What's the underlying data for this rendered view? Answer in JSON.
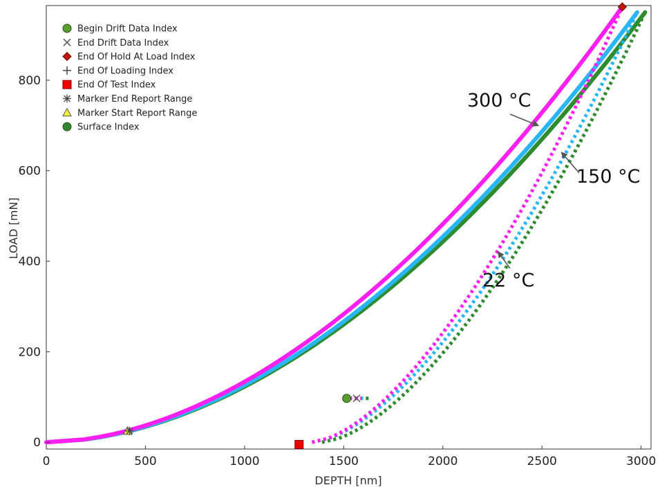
{
  "chart_data": {
    "type": "line",
    "xlabel": "DEPTH [nm]",
    "ylabel": "LOAD [mN]",
    "xlim": [
      0,
      3050
    ],
    "ylim": [
      -15,
      965
    ],
    "x_ticks": [
      "0",
      "500",
      "1000",
      "1500",
      "2000",
      "2500",
      "3000"
    ],
    "y_ticks": [
      "0",
      "200",
      "400",
      "600",
      "800"
    ],
    "x_tick_values": [
      0,
      500,
      1000,
      1500,
      2000,
      2500,
      3000
    ],
    "y_tick_values": [
      0,
      200,
      400,
      600,
      800
    ],
    "grid": false,
    "legend_position": "top-left",
    "series": [
      {
        "color": "#2e8b2e",
        "loading": {
          "start": [
            0,
            0
          ],
          "end": [
            3020,
            950
          ],
          "exponent": 1.85
        },
        "unloading": {
          "start": [
            1390,
            0
          ],
          "end": [
            3020,
            950
          ],
          "exponent": 1.6
        },
        "hold_segment": [
          [
            1500,
            97
          ],
          [
            1640,
            97
          ]
        ]
      },
      {
        "color": "#29b6f6",
        "loading": {
          "start": [
            0,
            0
          ],
          "end": [
            2980,
            950
          ],
          "exponent": 1.85
        },
        "unloading": {
          "start": [
            1340,
            0
          ],
          "end": [
            2980,
            950
          ],
          "exponent": 1.6
        },
        "hold_segment": [
          [
            1500,
            97
          ],
          [
            1610,
            97
          ]
        ]
      },
      {
        "color": "#ff1ff0",
        "loading": {
          "start": [
            0,
            0
          ],
          "end": [
            2905,
            962
          ],
          "exponent": 1.85
        },
        "unloading": {
          "start": [
            1340,
            0
          ],
          "end": [
            2905,
            962
          ],
          "exponent": 1.6
        },
        "hold_segment": [
          [
            1500,
            97
          ],
          [
            1590,
            97
          ]
        ]
      }
    ],
    "legend": [
      {
        "label": "Begin Drift Data Index",
        "marker": "circle",
        "color": "#5a9e2f"
      },
      {
        "label": "End Drift Data Index",
        "marker": "x",
        "color": "#555555"
      },
      {
        "label": "End Of Hold At Load Index",
        "marker": "diamond",
        "color": "#c0180c"
      },
      {
        "label": "End Of Loading Index",
        "marker": "plus",
        "color": "#444444"
      },
      {
        "label": "End Of Test Index",
        "marker": "square",
        "color": "#ee0000"
      },
      {
        "label": "Marker End Report Range",
        "marker": "asterisk",
        "color": "#444444"
      },
      {
        "label": "Marker Start Report Range",
        "marker": "triangle",
        "color": "#f5f03a"
      },
      {
        "label": "Surface Index",
        "marker": "circle",
        "color": "#2e8b2e"
      }
    ],
    "markers": [
      {
        "type": "circle",
        "x": 1515,
        "y": 97,
        "color": "#5a9e2f"
      },
      {
        "type": "x",
        "x": 1565,
        "y": 97,
        "color": "#555555"
      },
      {
        "type": "diamond",
        "x": 2905,
        "y": 962,
        "color": "#c0180c"
      },
      {
        "type": "square",
        "x": 1275,
        "y": -5,
        "color": "#ee0000"
      },
      {
        "type": "triangle",
        "x": 410,
        "y": 25,
        "color": "#f5f03a"
      },
      {
        "type": "asterisk",
        "x": 420,
        "y": 25,
        "color": "#444444"
      }
    ],
    "annotations": [
      {
        "text": "300 °C",
        "arrow_to": [
          2480,
          700
        ]
      },
      {
        "text": "150 °C",
        "arrow_to": [
          2600,
          640
        ]
      },
      {
        "text": "22 °C",
        "arrow_to": [
          2280,
          420
        ]
      }
    ]
  }
}
